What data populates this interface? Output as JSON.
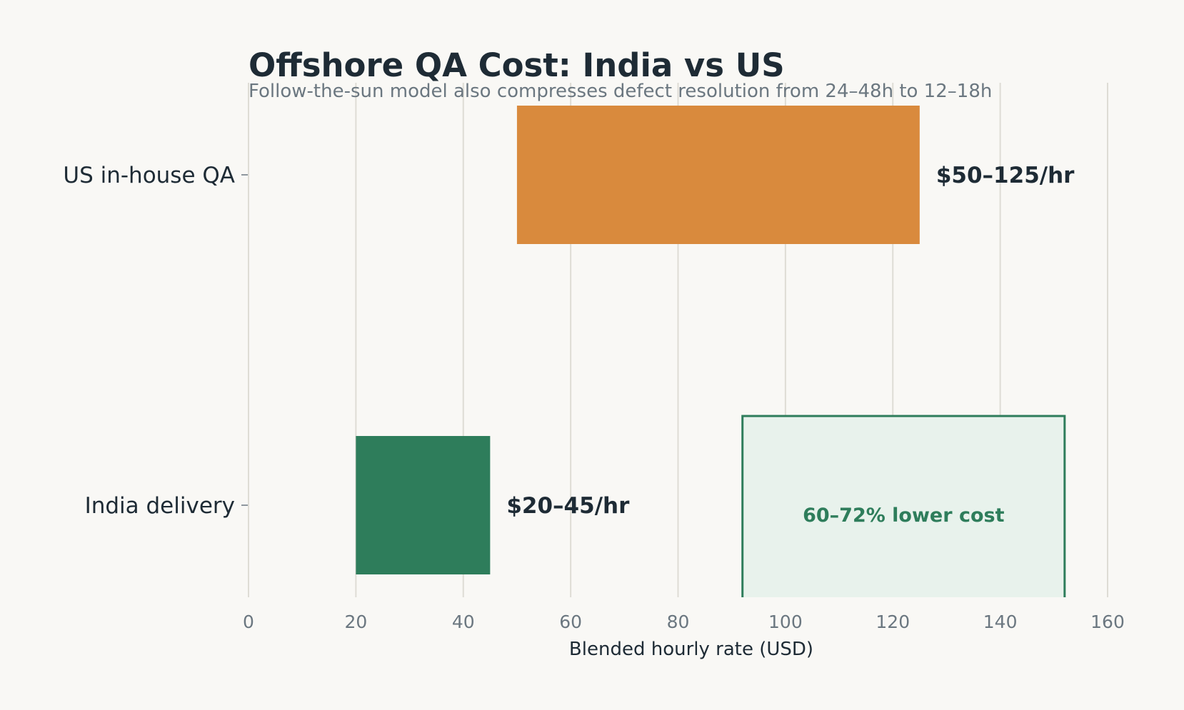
{
  "chart_data": {
    "type": "bar",
    "orientation": "horizontal",
    "title": "Offshore QA Cost: India vs US",
    "subtitle": "Follow-the-sun model also compresses defect resolution from 24–48h to 12–18h",
    "xlabel": "Blended hourly rate (USD)",
    "ylabel": "",
    "xlim": [
      0,
      160
    ],
    "xticks": [
      0,
      20,
      40,
      60,
      80,
      100,
      120,
      140,
      160
    ],
    "grid": "vertical",
    "categories": [
      "US in-house QA",
      "India delivery"
    ],
    "ranges": [
      {
        "category": "US in-house QA",
        "low": 50,
        "high": 125,
        "label": "$50–125/hr",
        "color": "#d98a3d"
      },
      {
        "category": "India delivery",
        "low": 20,
        "high": 45,
        "label": "$20–45/hr",
        "color": "#2e7d5b"
      }
    ],
    "annotation": {
      "text": "60–72% lower cost",
      "x_range": [
        92,
        152
      ],
      "category": "India delivery",
      "border_color": "#2e7d5b",
      "fill_color": "#e8f2ec",
      "text_color": "#2e7d5b"
    }
  }
}
